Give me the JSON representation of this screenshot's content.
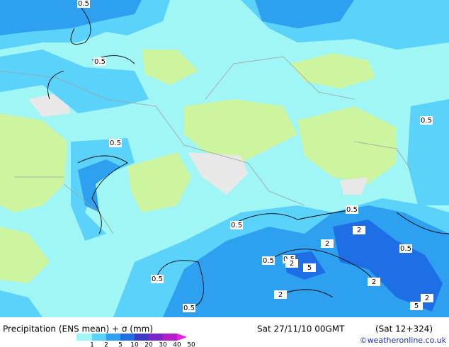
{
  "map": {
    "contour_labels": [
      "0.5",
      "0.5",
      "0.5",
      "0.5",
      "0.5",
      "0.5",
      "2",
      "2",
      "0.5",
      "0.5",
      "0.5",
      "2",
      "5",
      "0.5",
      "2",
      "2",
      "0.5",
      "2",
      "5"
    ]
  },
  "footer": {
    "title": "Precipitation (ENS mean) + σ (mm)",
    "valid": "Sat 27/11/10 00GMT",
    "run": "(Sat 12+324)",
    "credit": "©weatheronline.co.uk"
  },
  "legend": {
    "levels": [
      1,
      2,
      5,
      10,
      20,
      30,
      40,
      50
    ],
    "colors": [
      "#a0f5f5",
      "#5ad2fa",
      "#2da0f0",
      "#1e6ee6",
      "#3c3cc8",
      "#7828c8",
      "#b41ec8",
      "#e61ee6"
    ]
  }
}
